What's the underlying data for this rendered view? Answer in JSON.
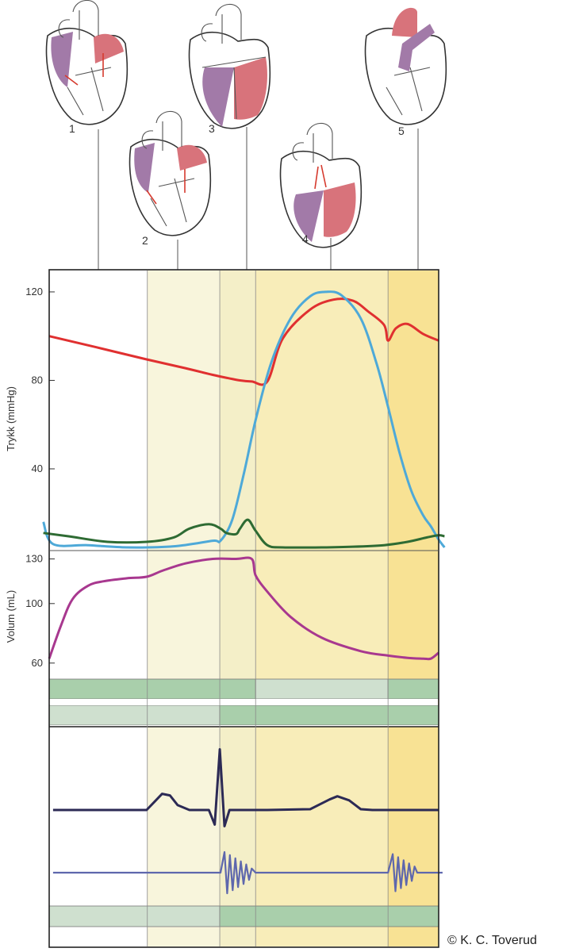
{
  "credit": "© K. C. Toverud",
  "hearts": [
    {
      "label": "1"
    },
    {
      "label": "2"
    },
    {
      "label": "3"
    },
    {
      "label": "4"
    },
    {
      "label": "5"
    }
  ],
  "colors": {
    "aorta_pressure": "#e03030",
    "ventricle_pressure": "#4ea9d8",
    "atrium_pressure": "#2e6b33",
    "ventricle_volume": "#a8388f",
    "ecg": "#2c2a55",
    "phonocardiogram": "#5e67ad",
    "valve_open": "#cfe0cf",
    "valve_closed": "#a9cfab",
    "phase_light": "#f8f5dc",
    "phase_mid": "#f4efc8",
    "phase_ejection": "#f8edb9",
    "phase_late": "#f8e294",
    "deoxygenated_blood": "#a27aa8",
    "oxygenated_blood": "#d8737b"
  },
  "chart_data": [
    {
      "type": "line",
      "ylabel": "Trykk (mmHg)",
      "yticks": [
        40,
        80,
        120
      ],
      "ylim": [
        0,
        127
      ],
      "x_unit": "fraction of cardiac cycle",
      "series": [
        {
          "key": "aorta",
          "x": [
            0,
            0.12,
            0.25,
            0.35,
            0.42,
            0.46,
            0.49,
            0.52,
            0.56,
            0.6,
            0.67,
            0.73,
            0.78,
            0.82,
            0.86,
            0.87,
            0.89,
            0.92,
            0.96,
            1.0
          ],
          "y": [
            100,
            95,
            89.5,
            85.5,
            82.5,
            81,
            80,
            79.5,
            79.5,
            99,
            112,
            116.5,
            116,
            111,
            105,
            98,
            103.5,
            105.5,
            101,
            98
          ]
        },
        {
          "key": "ventricle",
          "x": [
            -0.015,
            0.01,
            0.1,
            0.2,
            0.32,
            0.42,
            0.44,
            0.47,
            0.5,
            0.53,
            0.57,
            0.62,
            0.67,
            0.71,
            0.75,
            0.8,
            0.84,
            0.87,
            0.9,
            0.93,
            0.96,
            0.98,
            1.0,
            1.015
          ],
          "y": [
            16,
            6,
            5.5,
            4.5,
            5,
            7.5,
            7.5,
            17,
            38,
            62,
            88,
            108,
            118,
            120,
            118.5,
            108,
            88,
            68,
            47,
            30,
            19,
            14,
            8,
            4.5
          ]
        },
        {
          "key": "atrium",
          "x": [
            -0.015,
            0.05,
            0.15,
            0.25,
            0.32,
            0.36,
            0.41,
            0.44,
            0.455,
            0.48,
            0.49,
            0.51,
            0.53,
            0.56,
            0.6,
            0.7,
            0.78,
            0.86,
            0.92,
            0.97,
            1.0,
            1.015
          ],
          "y": [
            11,
            9.5,
            7,
            7,
            9,
            13,
            15,
            13,
            11,
            10.5,
            13,
            17,
            12,
            5.5,
            4.5,
            4.5,
            4.8,
            5.5,
            7,
            9,
            10,
            9.5
          ]
        }
      ]
    },
    {
      "type": "line",
      "ylabel": "Volum (mL)",
      "yticks": [
        60,
        100,
        130
      ],
      "ylim": [
        50,
        140
      ],
      "x_unit": "fraction of cardiac cycle",
      "series": [
        {
          "key": "volume",
          "x": [
            0,
            0.03,
            0.06,
            0.1,
            0.14,
            0.2,
            0.25,
            0.29,
            0.35,
            0.42,
            0.48,
            0.52,
            0.53,
            0.56,
            0.62,
            0.7,
            0.8,
            0.87,
            0.92,
            0.96,
            0.98,
            1.0
          ],
          "y": [
            63,
            85,
            103,
            112,
            115,
            117,
            118,
            122,
            127,
            130,
            130,
            130,
            119,
            108,
            91,
            77,
            68,
            65,
            63.5,
            63,
            63,
            67
          ]
        }
      ]
    }
  ],
  "phases": [
    {
      "from": 0,
      "to": 0.252,
      "shade": "none"
    },
    {
      "from": 0.252,
      "to": 0.438,
      "shade": "light"
    },
    {
      "from": 0.438,
      "to": 0.53,
      "shade": "mid"
    },
    {
      "from": 0.53,
      "to": 0.87,
      "shade": "ejection"
    },
    {
      "from": 0.87,
      "to": 1.0,
      "shade": "late"
    }
  ],
  "valve_bars": {
    "av_valves": [
      {
        "from": 0,
        "to": 0.53,
        "state": "closed"
      },
      {
        "from": 0.53,
        "to": 0.87,
        "state": "open"
      },
      {
        "from": 0.87,
        "to": 1.0,
        "state": "closed"
      }
    ],
    "semilunar_valves": [
      {
        "from": 0,
        "to": 0.438,
        "state": "open"
      },
      {
        "from": 0.438,
        "to": 1.0,
        "state": "closed"
      }
    ],
    "ecg_bar": [
      {
        "from": 0,
        "to": 0.438,
        "state": "open"
      },
      {
        "from": 0.438,
        "to": 1.0,
        "state": "closed"
      }
    ]
  },
  "ecg": {
    "x": [
      0.01,
      0.25,
      0.27,
      0.29,
      0.31,
      0.33,
      0.36,
      0.41,
      0.425,
      0.438,
      0.45,
      0.463,
      0.49,
      0.56,
      0.67,
      0.72,
      0.74,
      0.77,
      0.8,
      0.83,
      1.0
    ],
    "y": [
      0,
      0,
      0.1,
      0.2,
      0.18,
      0.06,
      0,
      0,
      -0.18,
      0.75,
      -0.2,
      0,
      0,
      0,
      0.01,
      0.13,
      0.17,
      0.12,
      0.01,
      0,
      0
    ]
  },
  "phonocardiogram": {
    "x": [
      0.01,
      0.44,
      0.45,
      0.457,
      0.464,
      0.471,
      0.478,
      0.485,
      0.492,
      0.499,
      0.506,
      0.513,
      0.52,
      0.53,
      0.87,
      0.882,
      0.889,
      0.896,
      0.903,
      0.91,
      0.917,
      0.924,
      0.931,
      0.938,
      0.945,
      1.01
    ],
    "y": [
      0,
      0,
      1,
      -1,
      0.85,
      -0.85,
      0.7,
      -0.7,
      0.55,
      -0.55,
      0.4,
      -0.35,
      0.2,
      0,
      0,
      0.9,
      -0.9,
      0.75,
      -0.75,
      0.6,
      -0.6,
      0.45,
      -0.4,
      0.3,
      0,
      0
    ]
  }
}
